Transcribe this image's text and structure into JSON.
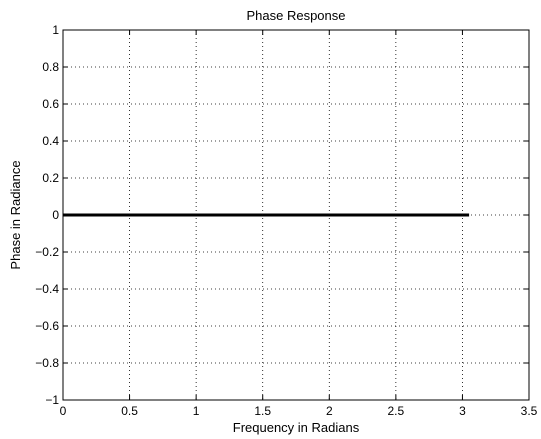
{
  "chart_data": {
    "type": "line",
    "title": "Phase Response",
    "xlabel": "Frequency in Radians",
    "ylabel": "Phase in Radiance",
    "xlim": [
      0,
      3.5
    ],
    "ylim": [
      -1,
      1
    ],
    "xticks": [
      0,
      0.5,
      1,
      1.5,
      2,
      2.5,
      3,
      3.5
    ],
    "yticks": [
      -1,
      -0.8,
      -0.6,
      -0.4,
      -0.2,
      0,
      0.2,
      0.4,
      0.6,
      0.8,
      1
    ],
    "xtick_labels": [
      "0",
      "0.5",
      "1",
      "1.5",
      "2",
      "2.5",
      "3",
      "3.5"
    ],
    "ytick_labels": [
      "−1",
      "−0.8",
      "−0.6",
      "−0.4",
      "−0.2",
      "0",
      "0.2",
      "0.4",
      "0.6",
      "0.8",
      "1"
    ],
    "grid": true,
    "grid_style": "dotted",
    "series": [
      {
        "x": [
          0,
          3.05
        ],
        "y": [
          0,
          0
        ],
        "color": "#000000"
      }
    ]
  }
}
